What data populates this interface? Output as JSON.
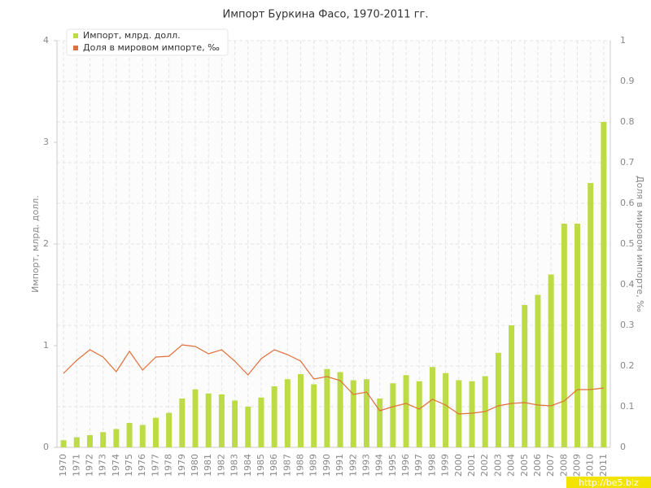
{
  "chart_data": {
    "type": "bar",
    "title": "Импорт Буркина Фасо, 1970-2011 гг.",
    "y_label": "Импорт, млрд. долл.",
    "y2_label": "Доля в мировом импорте, ‰",
    "categories": [
      "1970",
      "1971",
      "1972",
      "1973",
      "1974",
      "1975",
      "1976",
      "1977",
      "1978",
      "1979",
      "1980",
      "1981",
      "1982",
      "1983",
      "1984",
      "1985",
      "1986",
      "1987",
      "1988",
      "1989",
      "1990",
      "1991",
      "1992",
      "1993",
      "1994",
      "1995",
      "1996",
      "1997",
      "1998",
      "1999",
      "2000",
      "2001",
      "2002",
      "2003",
      "2004",
      "2005",
      "2006",
      "2007",
      "2008",
      "2009",
      "2010",
      "2011"
    ],
    "series": [
      {
        "name": "Импорт, млрд. долл.",
        "type": "bar",
        "color": "#bcdb45",
        "values": [
          0.07,
          0.1,
          0.12,
          0.15,
          0.18,
          0.24,
          0.22,
          0.29,
          0.34,
          0.48,
          0.57,
          0.53,
          0.52,
          0.46,
          0.4,
          0.49,
          0.6,
          0.67,
          0.72,
          0.62,
          0.77,
          0.74,
          0.66,
          0.67,
          0.48,
          0.63,
          0.71,
          0.65,
          0.79,
          0.73,
          0.66,
          0.65,
          0.7,
          0.93,
          1.2,
          1.4,
          1.5,
          1.7,
          2.2,
          2.2,
          2.6,
          3.2
        ]
      },
      {
        "name": "Доля в мировом импорте, ‰",
        "type": "line",
        "axis": "y2",
        "color": "#e0703a",
        "values": [
          0.182,
          0.214,
          0.24,
          0.222,
          0.186,
          0.236,
          0.19,
          0.222,
          0.224,
          0.252,
          0.248,
          0.23,
          0.24,
          0.212,
          0.178,
          0.218,
          0.24,
          0.228,
          0.212,
          0.168,
          0.174,
          0.164,
          0.13,
          0.136,
          0.09,
          0.1,
          0.108,
          0.094,
          0.118,
          0.104,
          0.082,
          0.084,
          0.088,
          0.102,
          0.108,
          0.11,
          0.104,
          0.102,
          0.114,
          0.142,
          0.142,
          0.146
        ]
      }
    ],
    "ylim": [
      0,
      4
    ],
    "yticks": [
      0,
      1,
      2,
      3,
      4
    ],
    "y2lim": [
      0,
      1
    ],
    "y2ticks": [
      0,
      0.1,
      0.2,
      0.3,
      0.4,
      0.5,
      0.6,
      0.7,
      0.8,
      0.9,
      1
    ],
    "grid": true,
    "legend": "top-left",
    "watermark": "http://be5.biz"
  }
}
